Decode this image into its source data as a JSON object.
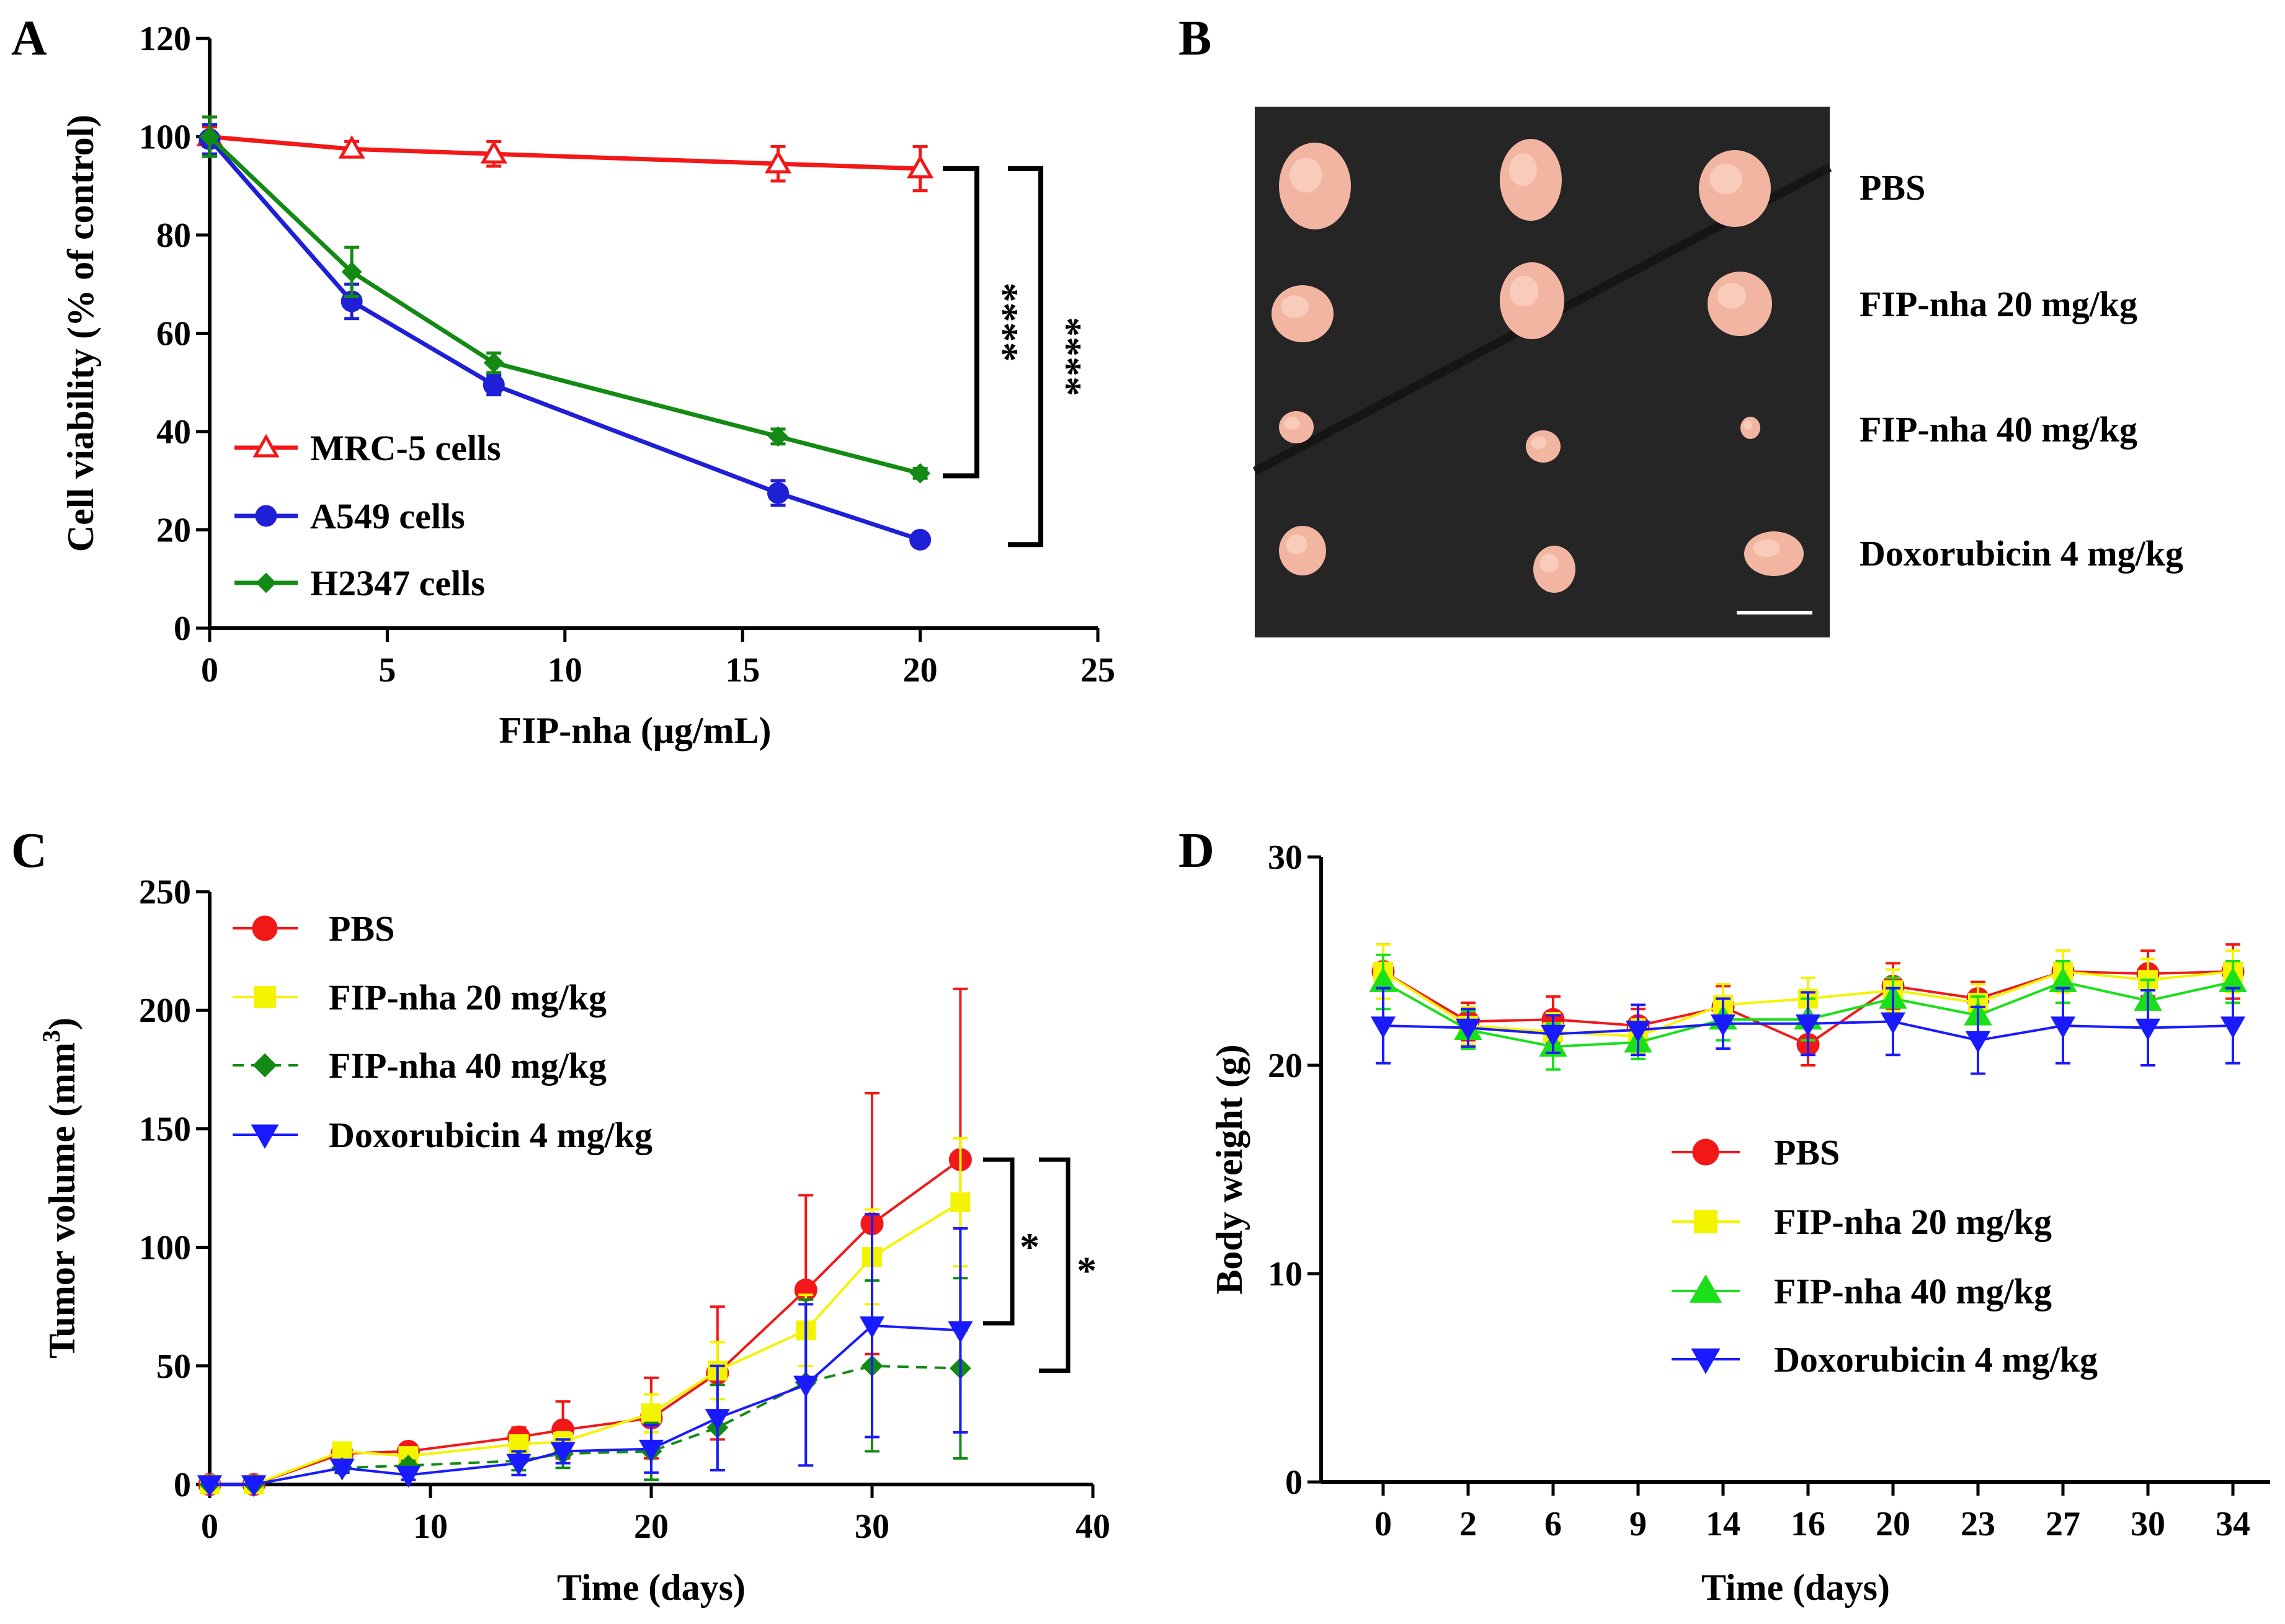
{
  "panels": {
    "A": "A",
    "B": "B",
    "C": "C",
    "D": "D"
  },
  "colors": {
    "red": "#f21818",
    "blue": "#1f1fd6",
    "green": "#138a13",
    "yellow": "#f4f400",
    "lime": "#19e019",
    "blue2": "#1a1aff",
    "black": "#000000",
    "photo_bg": "#252525",
    "tumor": "#f2b5a2"
  },
  "chart_data": [
    {
      "panel": "A",
      "type": "line",
      "xlabel": "FIP-nha (μg/mL)",
      "ylabel": "Cell viability (% of control)",
      "xlim": [
        0,
        25
      ],
      "ylim": [
        0,
        120
      ],
      "xticks": [
        0,
        5,
        10,
        15,
        20,
        25
      ],
      "yticks": [
        0,
        20,
        40,
        60,
        80,
        100,
        120
      ],
      "x": [
        0,
        4,
        8,
        16,
        20
      ],
      "series": [
        {
          "name": "MRC-5 cells",
          "marker": "triangle-open",
          "values": [
            100,
            97.5,
            96.5,
            94.5,
            93.5
          ],
          "errors": [
            2,
            1.5,
            2.5,
            3.5,
            4.5
          ]
        },
        {
          "name": "A549 cells",
          "marker": "circle",
          "values": [
            99.5,
            66.5,
            49.5,
            27.5,
            18
          ],
          "errors": [
            3,
            3.5,
            2,
            2.5,
            1
          ]
        },
        {
          "name": "H2347 cells",
          "marker": "diamond",
          "values": [
            100,
            72.5,
            54,
            39,
            31.5
          ],
          "errors": [
            4,
            5,
            2,
            1.5,
            1
          ]
        }
      ],
      "significance": [
        {
          "label": "****",
          "from": "MRC-5 cells",
          "to": "H2347 cells"
        },
        {
          "label": "****",
          "from": "MRC-5 cells",
          "to": "A549 cells"
        }
      ],
      "legend_position": "bottom-left"
    },
    {
      "panel": "C",
      "type": "line",
      "xlabel": "Time (days)",
      "ylabel": "Tumor volume (mm³)",
      "ylabel_main": "Tumor volume (mm",
      "ylabel_sup": "3",
      "ylabel_end": ")",
      "xlim": [
        0,
        40
      ],
      "ylim": [
        0,
        250
      ],
      "xticks": [
        0,
        10,
        20,
        30,
        40
      ],
      "yticks": [
        0,
        50,
        100,
        150,
        200,
        250
      ],
      "x": [
        0,
        2,
        6,
        9,
        14,
        16,
        20,
        23,
        27,
        30,
        34
      ],
      "series": [
        {
          "name": "PBS",
          "marker": "circle",
          "values": [
            0,
            0,
            13,
            14,
            20,
            23,
            28,
            47,
            82,
            110,
            137
          ],
          "errors": [
            0,
            0,
            2,
            3,
            4,
            12,
            17,
            28,
            40,
            55,
            72
          ]
        },
        {
          "name": "FIP-nha 20 mg/kg",
          "marker": "square",
          "values": [
            0,
            0,
            14,
            12,
            17,
            18,
            30,
            48,
            65,
            96,
            119
          ],
          "errors": [
            0,
            0,
            2,
            2,
            3,
            4,
            8,
            12,
            15,
            20,
            27
          ]
        },
        {
          "name": "FIP-nha 40 mg/kg",
          "marker": "diamond",
          "dashed": true,
          "values": [
            0,
            0,
            7,
            8,
            10,
            13,
            14,
            24,
            43,
            50,
            49
          ],
          "errors": [
            0,
            0,
            2,
            2,
            4,
            6,
            12,
            18,
            35,
            36,
            38
          ]
        },
        {
          "name": "Doxorubicin 4 mg/kg",
          "marker": "triangle-down",
          "values": [
            0,
            0,
            7,
            4,
            9,
            14,
            15,
            28,
            42,
            67,
            65
          ],
          "errors": [
            0,
            0,
            2,
            2,
            5,
            5,
            10,
            22,
            34,
            47,
            43
          ]
        }
      ],
      "significance": [
        {
          "label": "*",
          "from": "PBS",
          "to": "Doxorubicin 4 mg/kg"
        },
        {
          "label": "*",
          "from": "PBS",
          "to": "FIP-nha 40 mg/kg"
        }
      ],
      "legend_position": "top-left"
    },
    {
      "panel": "D",
      "type": "line",
      "xlabel": "Time (days)",
      "ylabel": "Body weight (g)",
      "ylim": [
        0,
        30
      ],
      "yticks": [
        0,
        10,
        20,
        30
      ],
      "categories": [
        "0",
        "2",
        "6",
        "9",
        "14",
        "16",
        "20",
        "23",
        "27",
        "30",
        "34"
      ],
      "series": [
        {
          "name": "PBS",
          "marker": "circle",
          "values": [
            24.5,
            22.1,
            22.2,
            21.9,
            22.8,
            21,
            23.8,
            23.2,
            24.5,
            24.4,
            24.5
          ],
          "errors": [
            1.3,
            0.9,
            1.1,
            0.8,
            1,
            1,
            1.1,
            0.8,
            1,
            1.1,
            1.3
          ]
        },
        {
          "name": "FIP-nha 20 mg/kg",
          "marker": "square",
          "values": [
            24.5,
            21.9,
            21.6,
            21.4,
            22.9,
            23.2,
            23.6,
            23,
            24.5,
            24.1,
            24.5
          ],
          "errors": [
            1.3,
            0.9,
            0.9,
            0.8,
            1,
            1,
            1,
            0.9,
            1,
            1,
            1
          ]
        },
        {
          "name": "FIP-nha 40 mg/kg",
          "marker": "triangle-up",
          "values": [
            24,
            21.7,
            20.9,
            21.1,
            22.2,
            22.2,
            23.2,
            22.4,
            24,
            23.1,
            24
          ],
          "errors": [
            1.3,
            0.9,
            1.1,
            0.8,
            1,
            1,
            1,
            0.9,
            1,
            1,
            1
          ]
        },
        {
          "name": "Doxorubicin 4 mg/kg",
          "marker": "triangle-down",
          "values": [
            21.9,
            21.8,
            21.5,
            21.7,
            22,
            22,
            22.1,
            21.2,
            21.9,
            21.8,
            21.9
          ],
          "errors": [
            1.8,
            0.9,
            0.9,
            1.2,
            1.2,
            1.5,
            1.6,
            1.6,
            1.8,
            1.8,
            1.8
          ]
        }
      ],
      "legend_position": "center"
    }
  ],
  "photo": {
    "rows": [
      "PBS",
      "FIP-nha 20 mg/kg",
      "FIP-nha 40 mg/kg",
      "Doxorubicin 4 mg/kg"
    ],
    "has_scale_bar": true
  }
}
